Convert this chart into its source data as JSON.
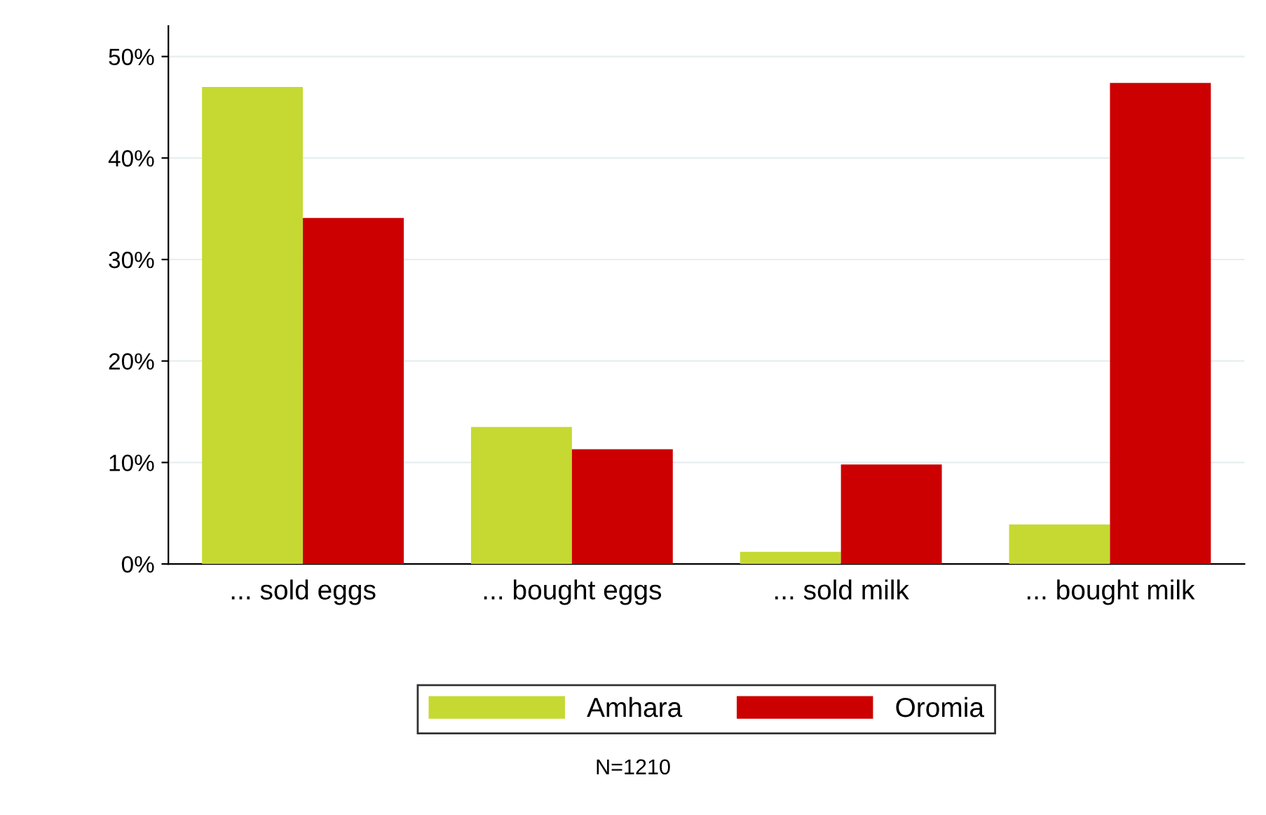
{
  "chart_data": {
    "type": "bar",
    "categories": [
      "... sold eggs",
      "... bought eggs",
      "... sold milk",
      "... bought milk"
    ],
    "series": [
      {
        "name": "Amhara",
        "color": "#c5d932",
        "values": [
          47.0,
          13.5,
          1.2,
          3.9
        ]
      },
      {
        "name": "Oromia",
        "color": "#cc0000",
        "values": [
          34.1,
          11.3,
          9.8,
          47.4
        ]
      }
    ],
    "ylim": [
      0,
      53
    ],
    "yticks": [
      {
        "value": 0,
        "label": "0%"
      },
      {
        "value": 10,
        "label": "10%"
      },
      {
        "value": 20,
        "label": "20%"
      },
      {
        "value": 30,
        "label": "30%"
      },
      {
        "value": 40,
        "label": "40%"
      },
      {
        "value": 50,
        "label": "50%"
      }
    ],
    "grid": "y",
    "legend": "bottom",
    "annotations": [
      "N=1210"
    ]
  }
}
